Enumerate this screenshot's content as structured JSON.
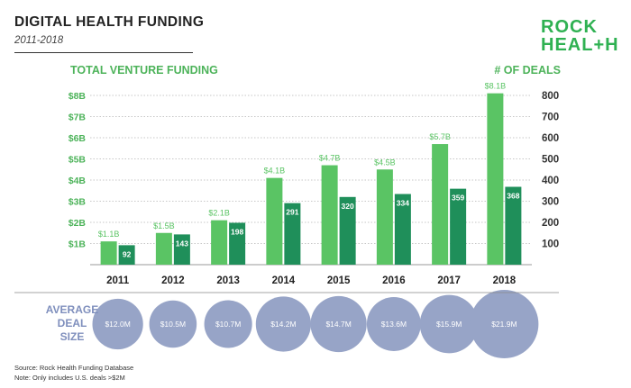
{
  "header": {
    "title": "DIGITAL HEALTH FUNDING",
    "subtitle": "2011-2018"
  },
  "logo": {
    "line1": "ROCK",
    "line2": "HEAL+H"
  },
  "colors": {
    "funding_bar": "#5ac464",
    "deals_bar": "#1f8f5a",
    "grid": "#b5b5b5",
    "axis_label": "#4db35a",
    "bubble": "#97a4c7",
    "avg_label": "#7f8fbd"
  },
  "chart_data": {
    "type": "bar",
    "title": "DIGITAL HEALTH FUNDING",
    "left_axis_title": "TOTAL VENTURE FUNDING",
    "right_axis_title": "# OF DEALS",
    "categories": [
      "2011",
      "2012",
      "2013",
      "2014",
      "2015",
      "2016",
      "2017",
      "2018"
    ],
    "ylim_left": [
      0,
      8
    ],
    "ylim_right": [
      0,
      800
    ],
    "left_ticks": [
      {
        "value": 1,
        "label": "$1B"
      },
      {
        "value": 2,
        "label": "$2B"
      },
      {
        "value": 3,
        "label": "$3B"
      },
      {
        "value": 4,
        "label": "$4B"
      },
      {
        "value": 5,
        "label": "$5B"
      },
      {
        "value": 6,
        "label": "$6B"
      },
      {
        "value": 7,
        "label": "$7B"
      },
      {
        "value": 8,
        "label": "$8B"
      }
    ],
    "right_ticks": [
      100,
      200,
      300,
      400,
      500,
      600,
      700,
      800
    ],
    "series": [
      {
        "name": "Total venture funding ($B)",
        "axis": "left",
        "values": [
          1.1,
          1.5,
          2.1,
          4.1,
          4.7,
          4.5,
          5.7,
          8.1
        ],
        "labels": [
          "$1.1B",
          "$1.5B",
          "$2.1B",
          "$4.1B",
          "$4.7B",
          "$4.5B",
          "$5.7B",
          "$8.1B"
        ]
      },
      {
        "name": "# of deals",
        "axis": "right",
        "values": [
          92,
          143,
          198,
          291,
          320,
          334,
          359,
          368
        ],
        "labels": [
          "92",
          "143",
          "198",
          "291",
          "320",
          "334",
          "359",
          "368"
        ]
      }
    ],
    "average_deal_size": {
      "label_lines": [
        "AVERAGE",
        "DEAL",
        "SIZE"
      ],
      "values": [
        12.0,
        10.5,
        10.7,
        14.2,
        14.7,
        13.6,
        15.9,
        21.9
      ],
      "labels": [
        "$12.0M",
        "$10.5M",
        "$10.7M",
        "$14.2M",
        "$14.7M",
        "$13.6M",
        "$15.9M",
        "$21.9M"
      ]
    }
  },
  "footer": {
    "source": "Source: Rock Health Funding Database",
    "note": "Note: Only includes U.S. deals >$2M"
  }
}
